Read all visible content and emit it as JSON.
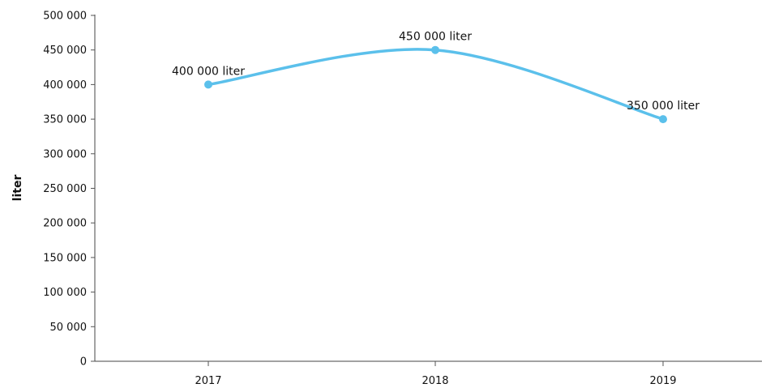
{
  "chart_data": {
    "type": "line",
    "title": "",
    "xlabel": "",
    "ylabel": "liter",
    "categories": [
      "2017",
      "2018",
      "2019"
    ],
    "series": [
      {
        "values": [
          400000,
          450000,
          350000
        ],
        "data_labels": [
          "400 000 liter",
          "450 000 liter",
          "350 000 liter"
        ],
        "color": "#5bc0eb",
        "smooth": true
      }
    ],
    "ylim": [
      0,
      500000
    ],
    "y_ticks": [
      0,
      50000,
      100000,
      150000,
      200000,
      250000,
      300000,
      350000,
      400000,
      450000,
      500000
    ],
    "y_tick_labels": [
      "0",
      "50 000",
      "100 000",
      "150 000",
      "200 000",
      "250 000",
      "300 000",
      "350 000",
      "400 000",
      "450 000",
      "500 000"
    ],
    "grid": false,
    "legend": "none"
  }
}
